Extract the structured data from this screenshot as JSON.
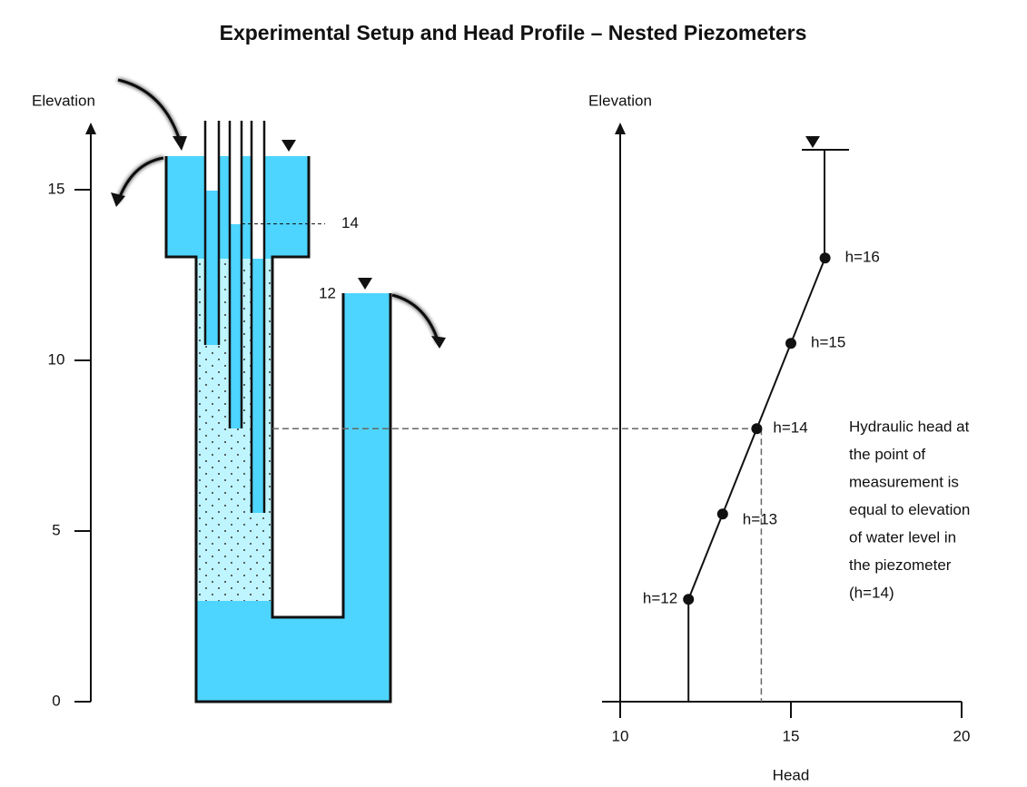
{
  "title": "Experimental Setup and Head Profile – Nested Piezometers",
  "apparatus": {
    "axis_label": "Elevation",
    "ylim": [
      0,
      17
    ],
    "yticks": [
      0,
      5,
      10,
      15
    ],
    "level_labels": [
      14,
      12
    ]
  },
  "profile": {
    "x_label": "Head",
    "y_label": "Elevation",
    "xlim": [
      10,
      20
    ],
    "xticks": [
      10,
      15,
      20
    ],
    "points": [
      {
        "label": "h=12",
        "head": 12,
        "elevation": 3
      },
      {
        "label": "h=13",
        "head": 13,
        "elevation": 5.5
      },
      {
        "label": "h=14",
        "head": 14,
        "elevation": 8
      },
      {
        "label": "h=15",
        "head": 15,
        "elevation": 10.5
      },
      {
        "label": "h=16",
        "head": 16,
        "elevation": 13
      }
    ],
    "note": [
      "Hydraulic head at",
      "the point of",
      "measurement is",
      "equal to elevation",
      "of water level in",
      "the piezometer",
      "(h=14)"
    ]
  }
}
